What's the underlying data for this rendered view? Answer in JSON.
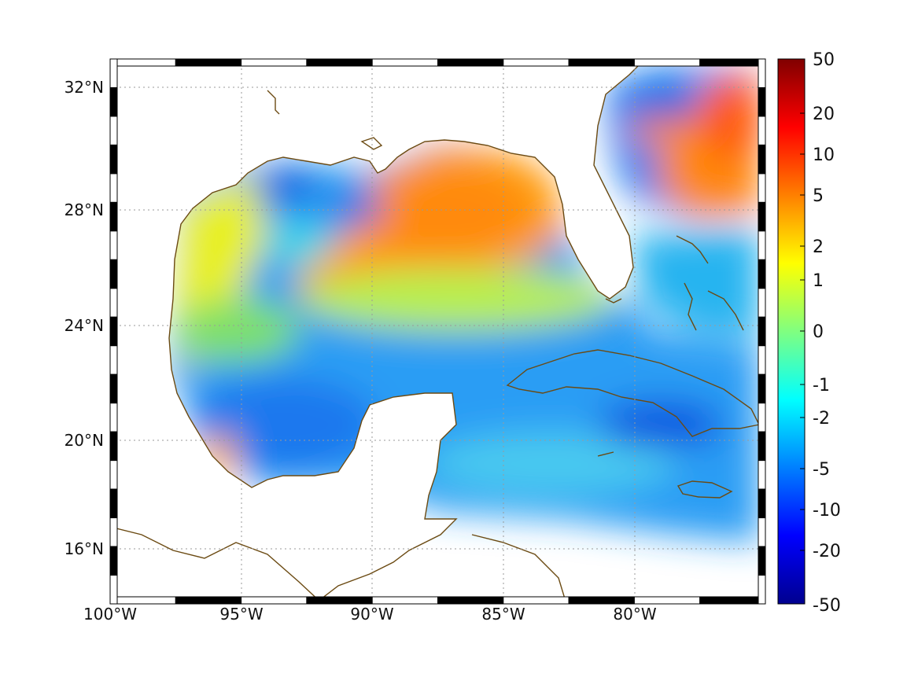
{
  "map": {
    "longitude_ticks": [
      "100°W",
      "95°W",
      "90°W",
      "85°W",
      "80°W"
    ],
    "latitude_ticks": [
      "32°N",
      "28°N",
      "24°N",
      "20°N",
      "16°N"
    ],
    "lon_range": [
      -100,
      -75
    ],
    "lat_range": [
      14.5,
      33
    ],
    "coastline_color": "#6b4a12",
    "grid": true,
    "frame_style": "black-and-white"
  },
  "colorbar": {
    "labels": [
      "50",
      "20",
      "10",
      "5",
      "2",
      "1",
      "0",
      "-1",
      "-2",
      "-5",
      "-10",
      "-20",
      "-50"
    ],
    "colormap": "jet",
    "placement": "right"
  },
  "regions": [
    {
      "name": "northeast-gulf",
      "level": "5"
    },
    {
      "name": "atlantic-northeast",
      "level": "10"
    },
    {
      "name": "west-gulf",
      "level": "1"
    },
    {
      "name": "louisiana-shelf",
      "level": "-5"
    },
    {
      "name": "south-gulf",
      "level": "-5"
    },
    {
      "name": "caribbean",
      "level": "-2"
    }
  ]
}
